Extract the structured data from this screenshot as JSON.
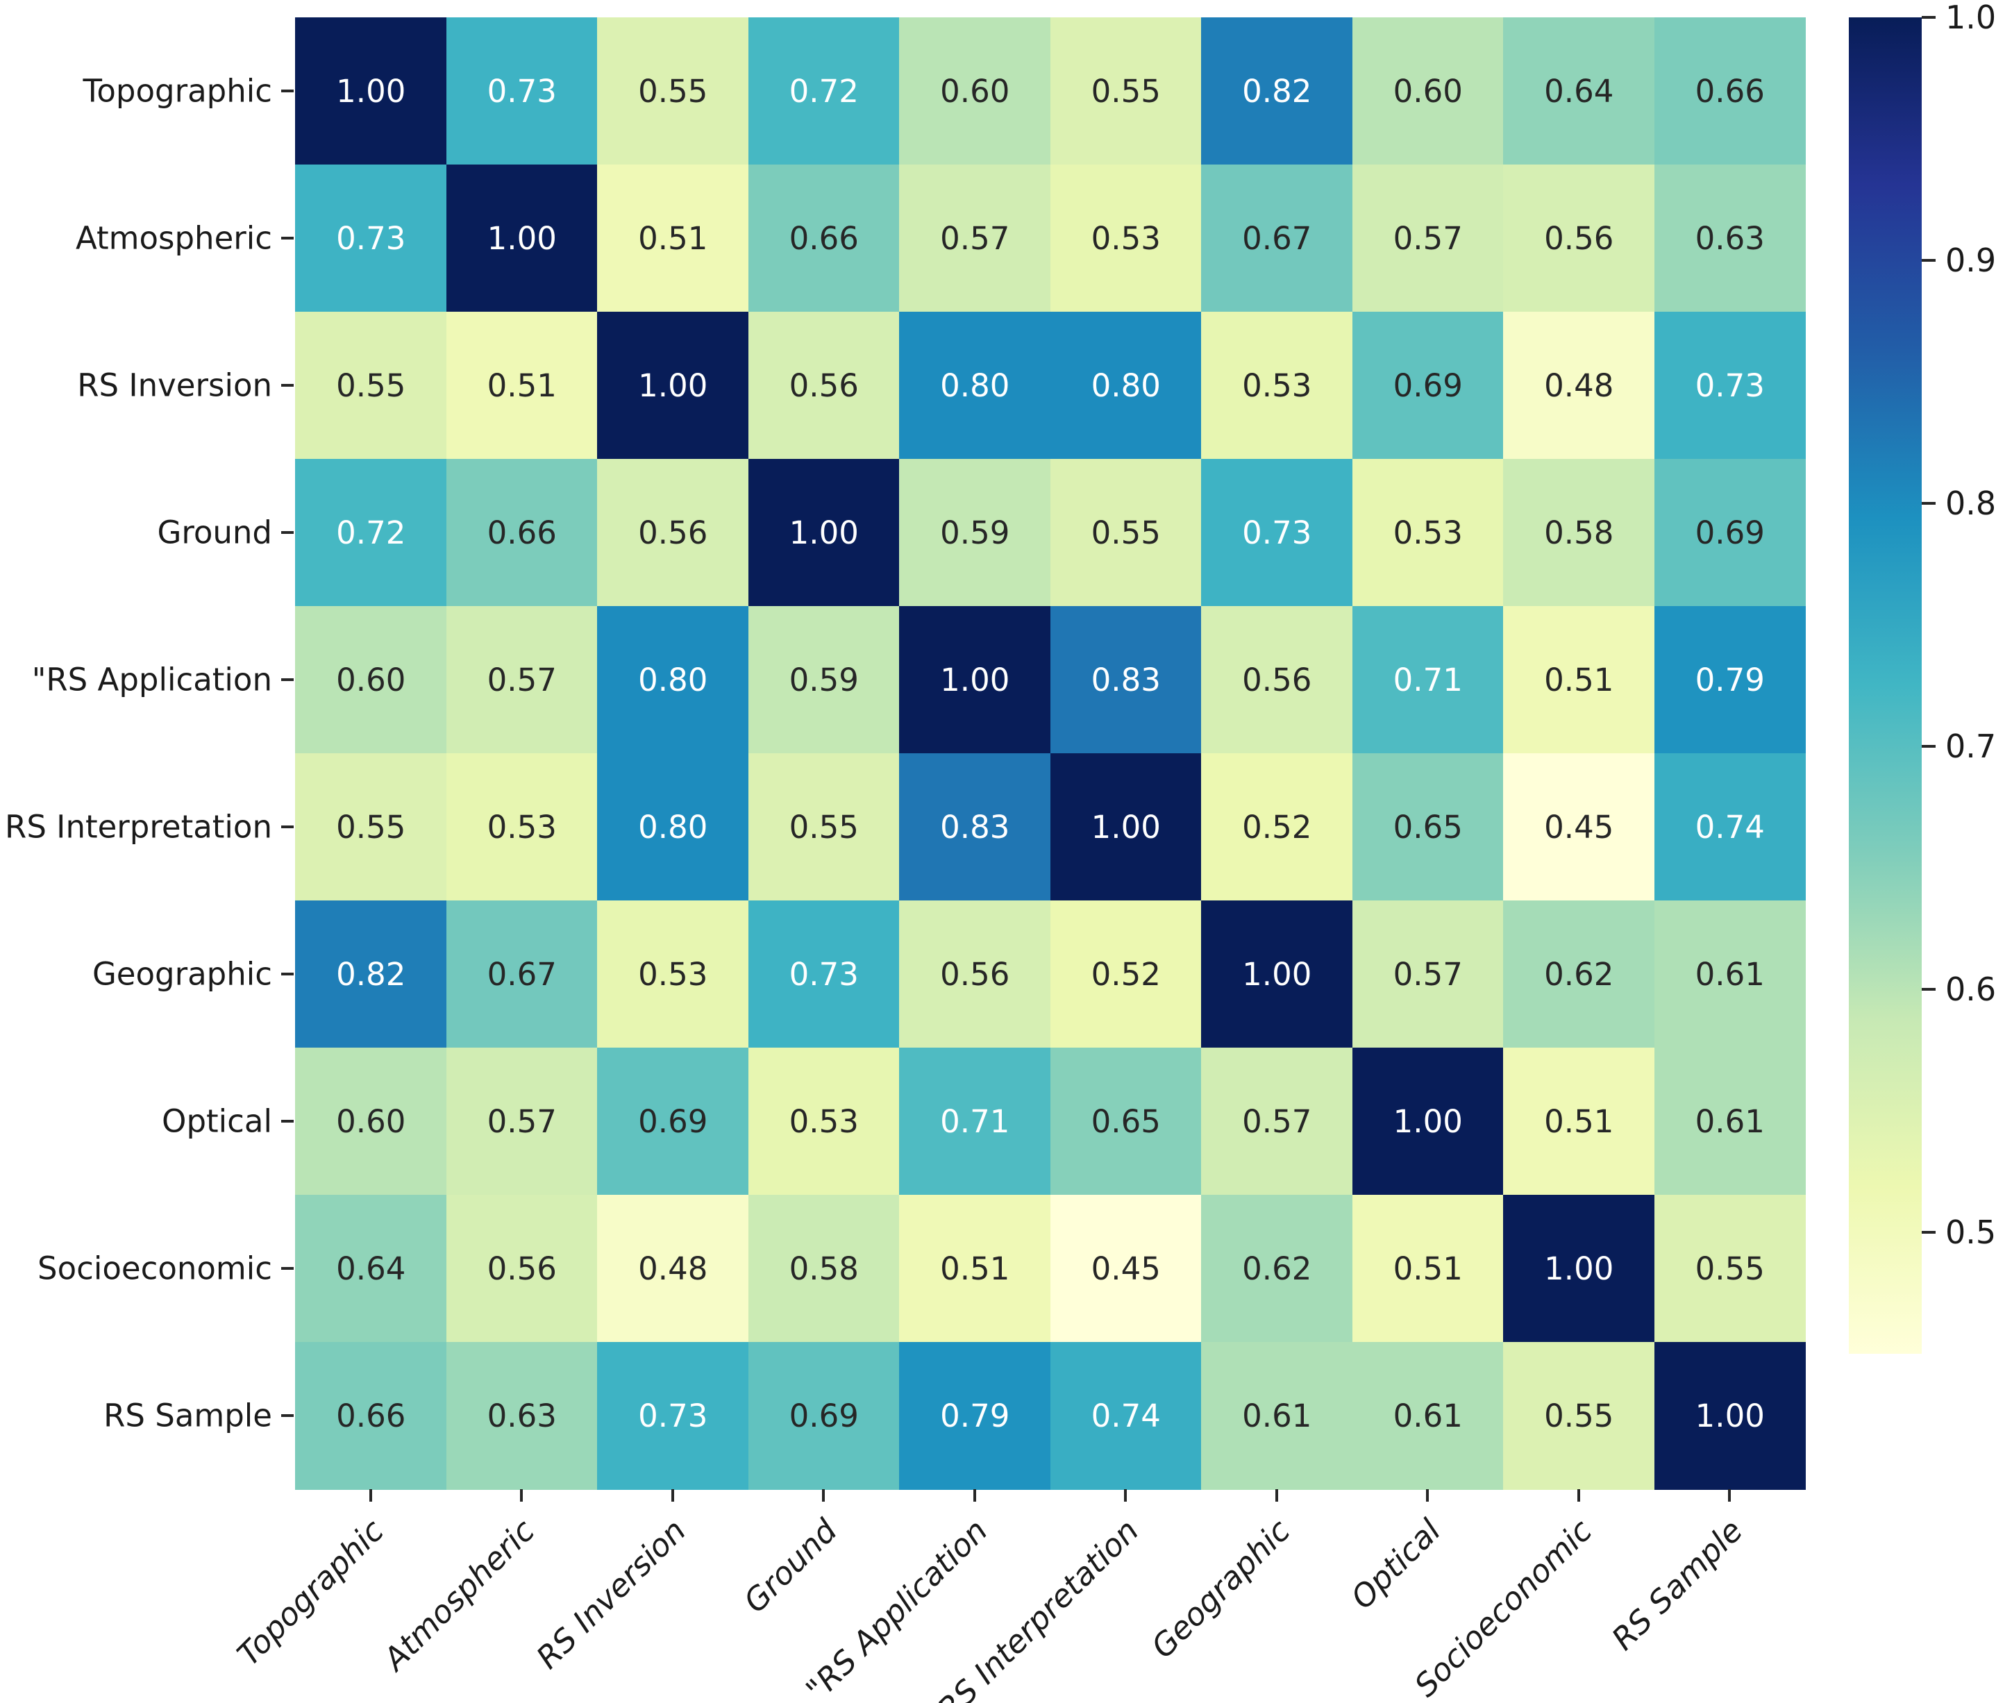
{
  "figure": {
    "background_color": "#ffffff",
    "annotation_dark_text_color": "#262626",
    "annotation_light_text_color": "#ffffff"
  },
  "chart_data": {
    "type": "heatmap",
    "title": "",
    "xlabel": "",
    "ylabel": "",
    "categories": [
      "Topographic",
      "Atmospheric",
      "RS Inversion",
      "Ground",
      "\"RS Application",
      "RS Interpretation",
      "Geographic",
      "Optical",
      "Socioeconomic",
      "RS Sample"
    ],
    "matrix": [
      [
        1.0,
        0.73,
        0.55,
        0.72,
        0.6,
        0.55,
        0.82,
        0.6,
        0.64,
        0.66
      ],
      [
        0.73,
        1.0,
        0.51,
        0.66,
        0.57,
        0.53,
        0.67,
        0.57,
        0.56,
        0.63
      ],
      [
        0.55,
        0.51,
        1.0,
        0.56,
        0.8,
        0.8,
        0.53,
        0.69,
        0.48,
        0.73
      ],
      [
        0.72,
        0.66,
        0.56,
        1.0,
        0.59,
        0.55,
        0.73,
        0.53,
        0.58,
        0.69
      ],
      [
        0.6,
        0.57,
        0.8,
        0.59,
        1.0,
        0.83,
        0.56,
        0.71,
        0.51,
        0.79
      ],
      [
        0.55,
        0.53,
        0.8,
        0.55,
        0.83,
        1.0,
        0.52,
        0.65,
        0.45,
        0.74
      ],
      [
        0.82,
        0.67,
        0.53,
        0.73,
        0.56,
        0.52,
        1.0,
        0.57,
        0.62,
        0.61
      ],
      [
        0.6,
        0.57,
        0.69,
        0.53,
        0.71,
        0.65,
        0.57,
        1.0,
        0.51,
        0.61
      ],
      [
        0.64,
        0.56,
        0.48,
        0.58,
        0.51,
        0.45,
        0.62,
        0.51,
        1.0,
        0.55
      ],
      [
        0.66,
        0.63,
        0.73,
        0.69,
        0.79,
        0.74,
        0.61,
        0.61,
        0.55,
        1.0
      ]
    ],
    "value_decimals": 2,
    "annotations": true,
    "grid": false,
    "colormap": "YlGnBu",
    "colormap_stops": [
      {
        "t": 0.0,
        "color": "#ffffd9"
      },
      {
        "t": 0.125,
        "color": "#edf8b1"
      },
      {
        "t": 0.25,
        "color": "#c7e9b4"
      },
      {
        "t": 0.375,
        "color": "#7fcdbb"
      },
      {
        "t": 0.5,
        "color": "#41b6c4"
      },
      {
        "t": 0.625,
        "color": "#1d91c0"
      },
      {
        "t": 0.75,
        "color": "#225ea8"
      },
      {
        "t": 0.875,
        "color": "#253494"
      },
      {
        "t": 1.0,
        "color": "#081d58"
      }
    ],
    "vmin": 0.45,
    "vmax": 1.0,
    "colorbar": {
      "position": "right",
      "tick_labels": [
        "1.0",
        "0.9",
        "0.8",
        "0.7",
        "0.6",
        "0.5"
      ],
      "tick_values": [
        1.0,
        0.9,
        0.8,
        0.7,
        0.6,
        0.5
      ]
    }
  }
}
